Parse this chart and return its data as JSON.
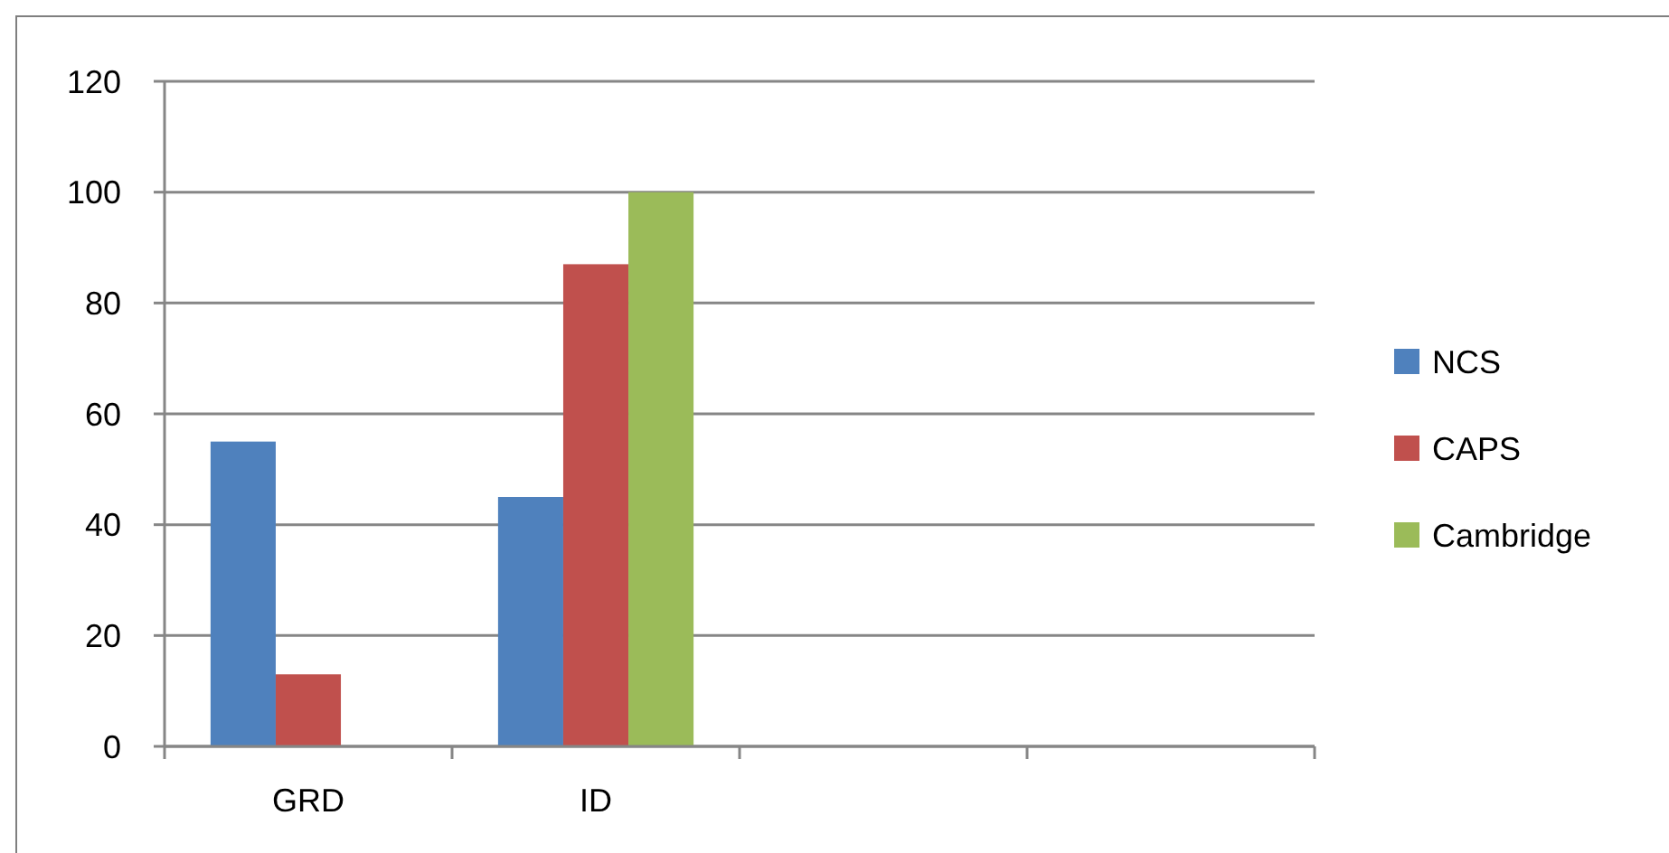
{
  "chart_data": {
    "type": "bar",
    "categories": [
      "GRD",
      "ID",
      null,
      null
    ],
    "series": [
      {
        "name": "NCS",
        "color": "#4f81bd",
        "values": [
          55,
          45,
          null,
          null
        ]
      },
      {
        "name": "CAPS",
        "color": "#c0504d",
        "values": [
          13,
          87,
          null,
          null
        ]
      },
      {
        "name": "Cambridge",
        "color": "#9bbb59",
        "values": [
          null,
          100,
          null,
          null
        ]
      }
    ],
    "ylim": [
      0,
      120
    ],
    "yticks": [
      0,
      20,
      40,
      60,
      80,
      100,
      120
    ],
    "grid": "y",
    "legend": "right"
  }
}
